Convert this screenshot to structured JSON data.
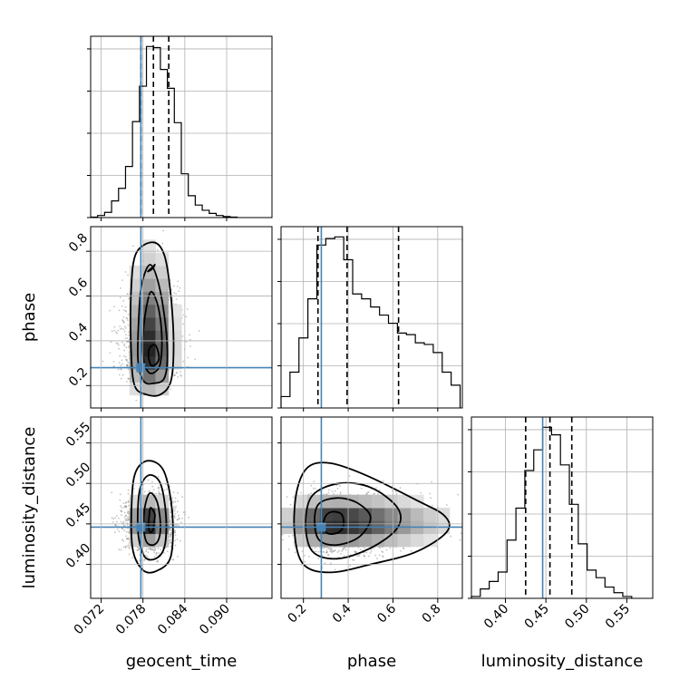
{
  "chart_data": {
    "type": "corner",
    "parameters": [
      "geocent_time",
      "phase",
      "luminosity_distance"
    ],
    "axis_labels": {
      "geocent_time": "geocent_time",
      "phase": "phase",
      "luminosity_distance": "luminosity_distance"
    },
    "ranges": {
      "geocent_time": [
        0.0705,
        0.0965
      ],
      "phase": [
        0.1,
        0.91
      ],
      "luminosity_distance": [
        0.358,
        0.582
      ]
    },
    "ticks": {
      "geocent_time": [
        0.072,
        0.078,
        0.084,
        0.09
      ],
      "phase": [
        0.2,
        0.4,
        0.6,
        0.8
      ],
      "luminosity_distance": [
        0.4,
        0.45,
        0.5,
        0.55
      ]
    },
    "tick_labels": {
      "geocent_time": [
        "0.072",
        "0.078",
        "0.084",
        "0.090"
      ],
      "phase": [
        "0.2",
        "0.4",
        "0.6",
        "0.8"
      ],
      "luminosity_distance": [
        "0.40",
        "0.45",
        "0.50",
        "0.55"
      ]
    },
    "truths": {
      "geocent_time": 0.0777,
      "phase": 0.28,
      "luminosity_distance": 0.446
    },
    "quantiles": {
      "geocent_time": [
        0.0777,
        0.0795,
        0.0817
      ],
      "phase": [
        0.265,
        0.395,
        0.625
      ],
      "luminosity_distance": [
        0.425,
        0.455,
        0.482
      ]
    },
    "histograms": {
      "geocent_time": {
        "edges": [
          0.0705,
          0.0715,
          0.0725,
          0.0735,
          0.0745,
          0.0755,
          0.0765,
          0.0775,
          0.0785,
          0.0795,
          0.0805,
          0.0815,
          0.0825,
          0.0835,
          0.0845,
          0.0855,
          0.0865,
          0.0875,
          0.0885,
          0.0895,
          0.0905,
          0.0915
        ],
        "counts": [
          0.5,
          2,
          5,
          16,
          28,
          49,
          92,
          126,
          164,
          163,
          142,
          124,
          91,
          42,
          21,
          12,
          7,
          4,
          2,
          1,
          0.5
        ]
      },
      "phase": {
        "edges": [
          0.1,
          0.14,
          0.18,
          0.22,
          0.26,
          0.3,
          0.34,
          0.38,
          0.42,
          0.46,
          0.5,
          0.54,
          0.58,
          0.62,
          0.66,
          0.7,
          0.74,
          0.78,
          0.82,
          0.86,
          0.9
        ],
        "counts": [
          7,
          22,
          43,
          67,
          100,
          104,
          105,
          91,
          70,
          67,
          62,
          57,
          52,
          46,
          45,
          40,
          39,
          34,
          22,
          14
        ]
      },
      "luminosity_distance": {
        "edges": [
          0.358,
          0.369,
          0.38,
          0.391,
          0.402,
          0.413,
          0.424,
          0.435,
          0.446,
          0.457,
          0.468,
          0.479,
          0.49,
          0.501,
          0.512,
          0.523,
          0.534,
          0.545,
          0.556
        ],
        "counts": [
          1,
          5,
          9,
          14,
          31,
          48,
          68,
          79,
          91,
          87,
          71,
          50,
          29,
          15,
          11,
          6,
          3,
          1
        ]
      }
    },
    "pairs": [
      {
        "x": "geocent_time",
        "y": "phase",
        "peak": [
          0.0792,
          0.34
        ],
        "spread": [
          0.0018,
          0.1
        ],
        "contour_levels": [
          [
            [
              0.0787,
              0.71
            ],
            [
              0.0794,
              0.73
            ],
            [
              0.0797,
              0.74
            ],
            [
              0.0793,
              0.72
            ]
          ],
          [
            [
              0.0798,
              0.38
            ],
            [
              0.0803,
              0.33
            ],
            [
              0.08,
              0.3
            ],
            [
              0.0792,
              0.29
            ],
            [
              0.0788,
              0.33
            ],
            [
              0.079,
              0.37
            ]
          ],
          [
            [
              0.0792,
              0.62
            ],
            [
              0.0802,
              0.55
            ],
            [
              0.0807,
              0.42
            ],
            [
              0.0805,
              0.3
            ],
            [
              0.0797,
              0.26
            ],
            [
              0.0788,
              0.26
            ],
            [
              0.0781,
              0.31
            ],
            [
              0.078,
              0.42
            ],
            [
              0.0785,
              0.55
            ]
          ],
          [
            [
              0.079,
              0.74
            ],
            [
              0.0802,
              0.66
            ],
            [
              0.0812,
              0.48
            ],
            [
              0.0815,
              0.32
            ],
            [
              0.081,
              0.23
            ],
            [
              0.0795,
              0.21
            ],
            [
              0.0781,
              0.22
            ],
            [
              0.0773,
              0.31
            ],
            [
              0.0774,
              0.5
            ],
            [
              0.0778,
              0.65
            ]
          ],
          [
            [
              0.0795,
              0.84
            ],
            [
              0.0811,
              0.78
            ],
            [
              0.082,
              0.6
            ],
            [
              0.0824,
              0.38
            ],
            [
              0.082,
              0.22
            ],
            [
              0.0805,
              0.16
            ],
            [
              0.0785,
              0.16
            ],
            [
              0.0768,
              0.2
            ],
            [
              0.0763,
              0.36
            ],
            [
              0.0763,
              0.62
            ],
            [
              0.077,
              0.79
            ]
          ]
        ]
      },
      {
        "x": "geocent_time",
        "y": "luminosity_distance",
        "peak": [
          0.079,
          0.452
        ],
        "spread": [
          0.0017,
          0.017
        ],
        "contour_levels": [
          [
            [
              0.0791,
              0.47
            ],
            [
              0.0797,
              0.462
            ],
            [
              0.0796,
              0.452
            ],
            [
              0.0794,
              0.442
            ],
            [
              0.079,
              0.44
            ],
            [
              0.0788,
              0.448
            ],
            [
              0.0789,
              0.46
            ]
          ],
          [
            [
              0.079,
              0.488
            ],
            [
              0.08,
              0.478
            ],
            [
              0.0805,
              0.452
            ],
            [
              0.0803,
              0.432
            ],
            [
              0.0795,
              0.424
            ],
            [
              0.0785,
              0.428
            ],
            [
              0.0781,
              0.448
            ],
            [
              0.0783,
              0.472
            ]
          ],
          [
            [
              0.0788,
              0.51
            ],
            [
              0.0805,
              0.5
            ],
            [
              0.0813,
              0.46
            ],
            [
              0.0811,
              0.422
            ],
            [
              0.0798,
              0.407
            ],
            [
              0.0782,
              0.41
            ],
            [
              0.0773,
              0.44
            ],
            [
              0.0775,
              0.49
            ]
          ],
          [
            [
              0.0788,
              0.528
            ],
            [
              0.081,
              0.515
            ],
            [
              0.0822,
              0.465
            ],
            [
              0.082,
              0.41
            ],
            [
              0.08,
              0.392
            ],
            [
              0.078,
              0.393
            ],
            [
              0.0765,
              0.42
            ],
            [
              0.0764,
              0.48
            ],
            [
              0.077,
              0.515
            ]
          ]
        ]
      },
      {
        "x": "phase",
        "y": "luminosity_distance",
        "peak": [
          0.33,
          0.452
        ],
        "spread": [
          0.12,
          0.018
        ],
        "contour_levels": [
          [
            [
              0.33,
              0.465
            ],
            [
              0.37,
              0.462
            ],
            [
              0.38,
              0.45
            ],
            [
              0.36,
              0.44
            ],
            [
              0.31,
              0.438
            ],
            [
              0.29,
              0.448
            ],
            [
              0.3,
              0.46
            ]
          ],
          [
            [
              0.35,
              0.482
            ],
            [
              0.44,
              0.476
            ],
            [
              0.5,
              0.458
            ],
            [
              0.45,
              0.434
            ],
            [
              0.35,
              0.424
            ],
            [
              0.27,
              0.43
            ],
            [
              0.25,
              0.455
            ],
            [
              0.27,
              0.475
            ]
          ],
          [
            [
              0.36,
              0.5
            ],
            [
              0.5,
              0.495
            ],
            [
              0.62,
              0.47
            ],
            [
              0.62,
              0.445
            ],
            [
              0.5,
              0.42
            ],
            [
              0.35,
              0.407
            ],
            [
              0.24,
              0.416
            ],
            [
              0.21,
              0.45
            ],
            [
              0.24,
              0.485
            ]
          ],
          [
            [
              0.32,
              0.525
            ],
            [
              0.48,
              0.51
            ],
            [
              0.7,
              0.48
            ],
            [
              0.83,
              0.46
            ],
            [
              0.84,
              0.44
            ],
            [
              0.7,
              0.415
            ],
            [
              0.5,
              0.4
            ],
            [
              0.32,
              0.39
            ],
            [
              0.2,
              0.4
            ],
            [
              0.16,
              0.44
            ],
            [
              0.17,
              0.49
            ],
            [
              0.22,
              0.52
            ]
          ]
        ]
      }
    ],
    "grid": true,
    "truth_color": "#4682b4",
    "line_color": "#000000"
  }
}
